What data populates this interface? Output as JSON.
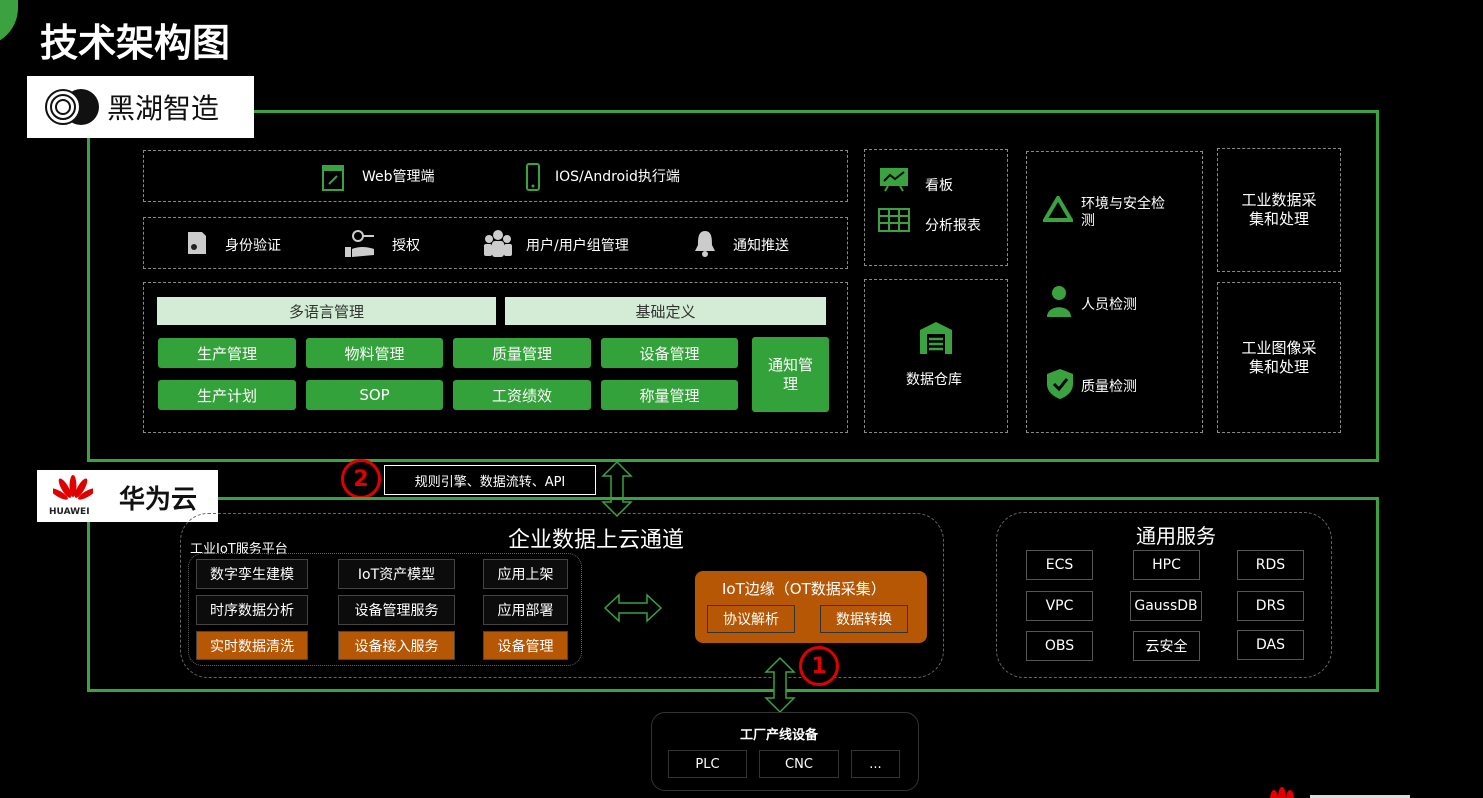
{
  "title": "技术架构图",
  "heihu": {
    "brand": "黑湖智造",
    "row1": [
      "Web管理端",
      "IOS/Android执行端"
    ],
    "row2": [
      "身份验证",
      "授权",
      "用户/用户组管理",
      "通知推送"
    ],
    "bars": [
      "多语言管理",
      "基础定义"
    ],
    "modules": [
      "生产管理",
      "物料管理",
      "质量管理",
      "设备管理",
      "生产计划",
      "SOP",
      "工资绩效",
      "称量管理"
    ],
    "notify": "通知管理",
    "dashboard": [
      "看板",
      "分析报表"
    ],
    "warehouse": "数据仓库",
    "detection": [
      "环境与安全检测",
      "人员检测",
      "质量检测"
    ],
    "collect": [
      "工业数据采集和处理",
      "工业图像采集和处理"
    ]
  },
  "link": {
    "num": "2",
    "label": "规则引擎、数据流转、API"
  },
  "huawei": {
    "brand": "华为云",
    "logo_text": "HUAWEI",
    "channel_title": "企业数据上云通道",
    "platform_title": "工业IoT服务平台",
    "platform_cells": [
      "数字孪生建模",
      "IoT资产模型",
      "应用上架",
      "时序数据分析",
      "设备管理服务",
      "应用部署",
      "实时数据清洗",
      "设备接入服务",
      "设备管理"
    ],
    "edge_title": "IoT边缘（OT数据采集）",
    "edge_cells": [
      "协议解析",
      "数据转换"
    ],
    "edge_num": "1",
    "general_title": "通用服务",
    "general": [
      "ECS",
      "HPC",
      "RDS",
      "VPC",
      "GaussDB",
      "DRS",
      "OBS",
      "云安全",
      "DAS"
    ]
  },
  "factory": {
    "title": "工厂产线设备",
    "devices": [
      "PLC",
      "CNC",
      "..."
    ]
  },
  "colors": {
    "green": "#3aa33f",
    "orange": "#b55705",
    "red": "#e00000"
  }
}
